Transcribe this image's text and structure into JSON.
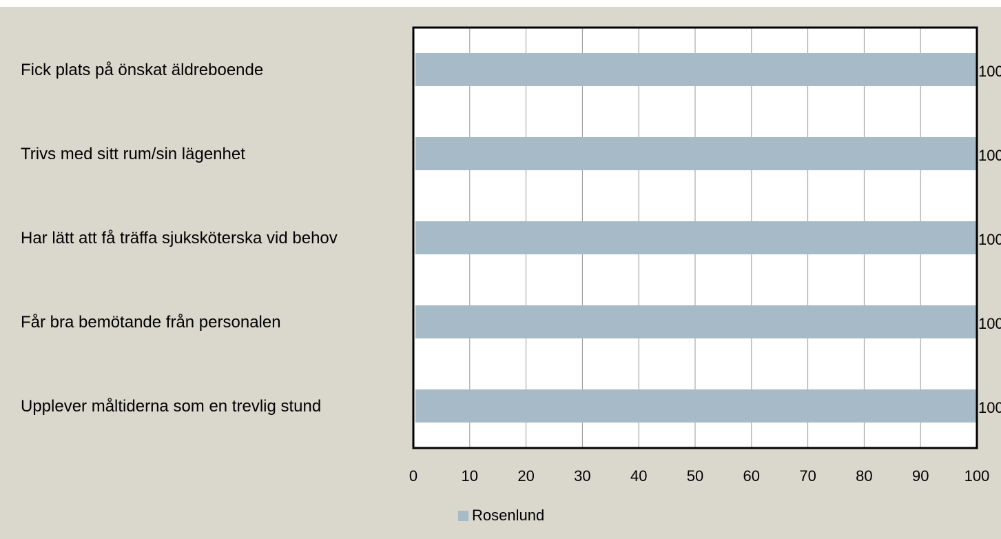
{
  "chart_data": {
    "type": "barh",
    "categories": [
      "Fick plats på önskat äldreboende",
      "Trivs med sitt rum/sin lägenhet",
      "Har lätt att få träffa sjuksköterska vid behov",
      "Får bra bemötande från personalen",
      "Upplever måltiderna som en trevlig stund"
    ],
    "series": [
      {
        "name": "Rosenlund",
        "color": "#a6bbc7",
        "values": [
          100,
          100,
          100,
          100,
          100
        ]
      }
    ],
    "xlim": [
      0,
      100
    ],
    "xticks": [
      0,
      10,
      20,
      30,
      40,
      50,
      60,
      70,
      80,
      90,
      100
    ],
    "grid": true,
    "legend": "bottom"
  }
}
